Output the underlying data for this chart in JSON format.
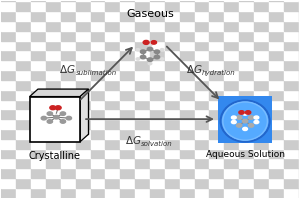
{
  "nodes": {
    "crystalline": [
      0.18,
      0.4
    ],
    "gaseous": [
      0.5,
      0.87
    ],
    "aqueous": [
      0.82,
      0.4
    ]
  },
  "labels": {
    "crystalline": "Crystalline",
    "gaseous": "Gaseous",
    "aqueous": "Aqueous Solution"
  },
  "arrow_color": "#555555",
  "text_color": "#333333",
  "check_light": "#ffffff",
  "check_dark": "#cccccc",
  "check_size": 0.05,
  "aq_box_color": "#3388ee",
  "aq_blob_color": "#55aaff",
  "aq_blob_edge": "#2266cc"
}
